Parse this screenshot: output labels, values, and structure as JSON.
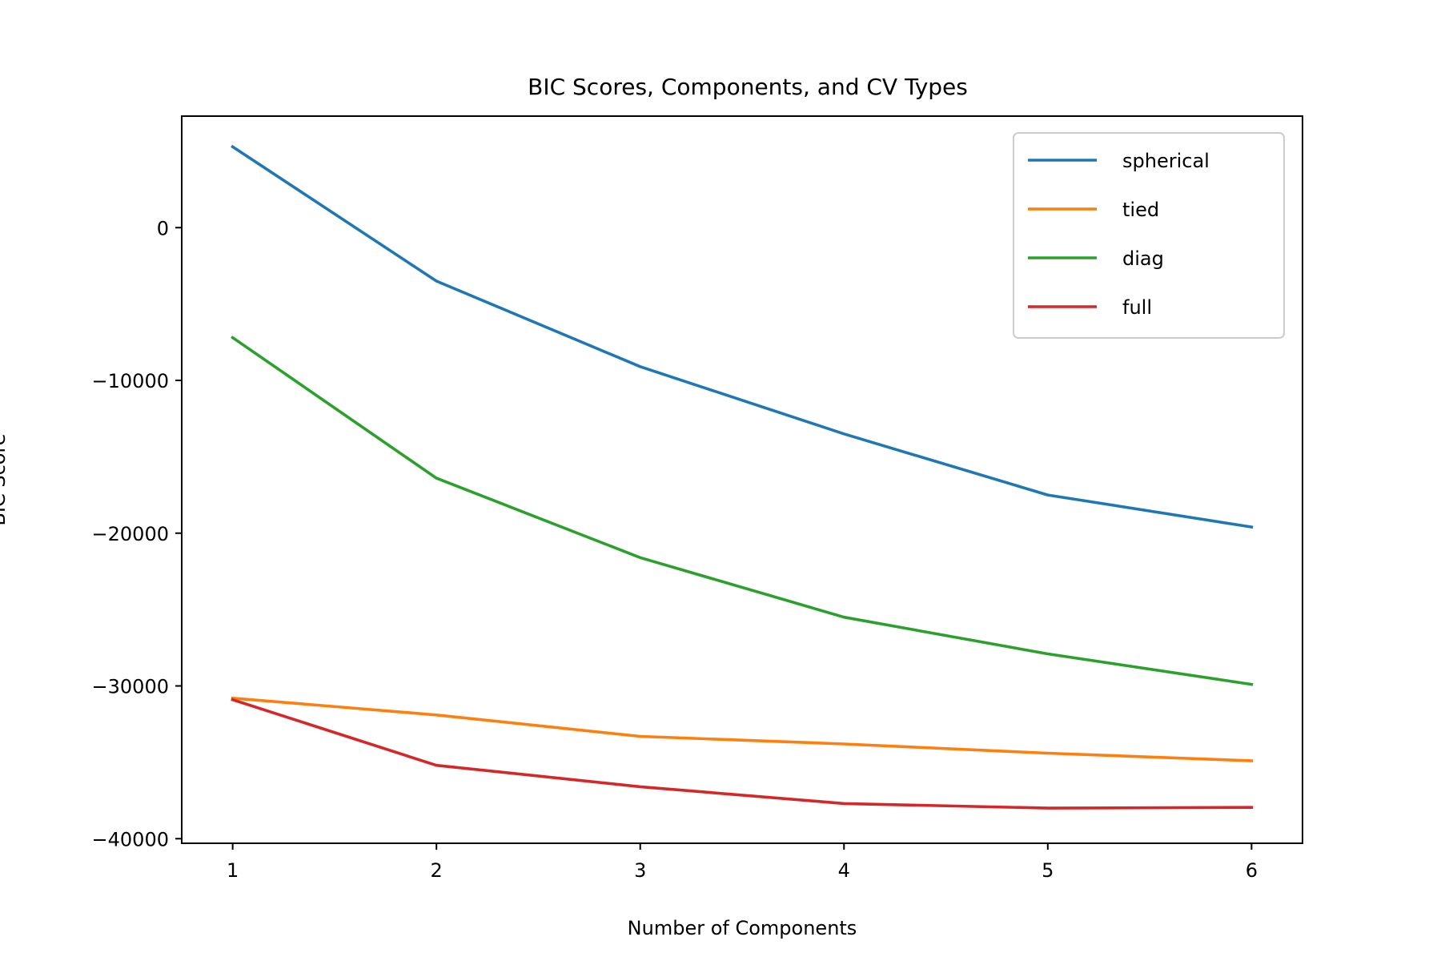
{
  "chart_data": {
    "type": "line",
    "title": "BIC Scores, Components, and CV Types",
    "xlabel": "Number of Components",
    "ylabel": "BIC Score",
    "x": [
      1,
      2,
      3,
      4,
      5,
      6
    ],
    "xticks": [
      "1",
      "2",
      "3",
      "4",
      "5",
      "6"
    ],
    "yticks": [
      0,
      -10000,
      -20000,
      -30000,
      -40000
    ],
    "ytick_labels": [
      "0",
      "−10000",
      "−20000",
      "−30000",
      "−40000"
    ],
    "xlim": [
      0.75,
      6.25
    ],
    "ylim": [
      -40300,
      7300
    ],
    "grid": false,
    "legend": "upper right",
    "series": [
      {
        "name": "spherical",
        "color": "#1f77b4",
        "values": [
          5300,
          -3500,
          -9100,
          -13500,
          -17500,
          -19600
        ]
      },
      {
        "name": "tied",
        "color": "#ff7f0e",
        "values": [
          -30800,
          -31900,
          -33300,
          -33800,
          -34400,
          -34900
        ]
      },
      {
        "name": "diag",
        "color": "#2ca02c",
        "values": [
          -7200,
          -16400,
          -21600,
          -25500,
          -27900,
          -29900
        ]
      },
      {
        "name": "full",
        "color": "#d62728",
        "values": [
          -30900,
          -35200,
          -36600,
          -37700,
          -38000,
          -37950
        ]
      }
    ]
  }
}
